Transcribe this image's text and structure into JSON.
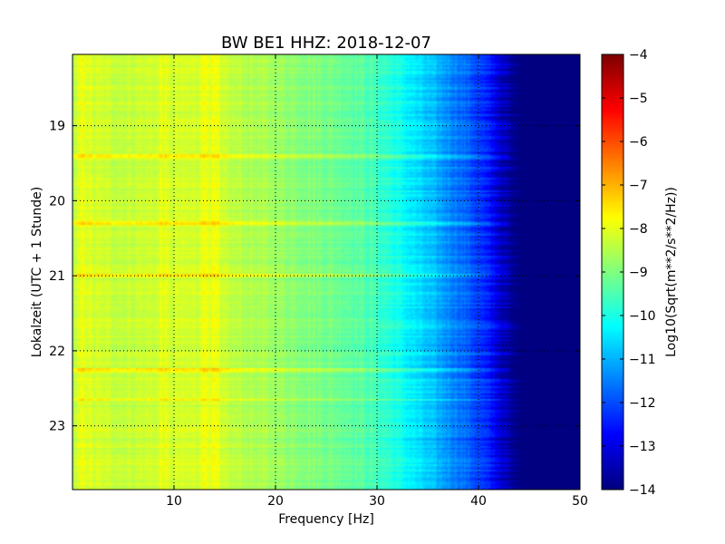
{
  "chart_data": {
    "type": "heatmap",
    "title": "BW BE1 HHZ: 2018-12-07",
    "xlabel": "Frequency [Hz]",
    "ylabel": "Lokalzeit (UTC + 1 Stunde)",
    "xlim": [
      0,
      50
    ],
    "ylim": [
      18.05,
      23.85
    ],
    "y_inverted": true,
    "grid": true,
    "x_ticks": [
      10,
      20,
      30,
      40,
      50
    ],
    "y_ticks": [
      19,
      20,
      21,
      22,
      23
    ],
    "x_tick_labels": [
      "10",
      "20",
      "30",
      "40",
      "50"
    ],
    "y_tick_labels": [
      "19",
      "20",
      "21",
      "22",
      "23"
    ],
    "colorbar": {
      "label": "Log10(Sqrt(m**2/s**2/Hz))",
      "colormap": "jet",
      "min": -14,
      "max": -4,
      "ticks": [
        -14,
        -13,
        -12,
        -11,
        -10,
        -9,
        -8,
        -7,
        -6,
        -5,
        -4
      ],
      "tick_labels": [
        "−14",
        "−13",
        "−12",
        "−11",
        "−10",
        "−9",
        "−8",
        "−7",
        "−6",
        "−5",
        "−4"
      ]
    },
    "spectrum_profile": {
      "frequency_hz": [
        0,
        1,
        2,
        5,
        9,
        13,
        20,
        28,
        31,
        33,
        35,
        37,
        39,
        41,
        42,
        43,
        44,
        46,
        50
      ],
      "log10_amplitude": [
        -8.6,
        -7.9,
        -8.2,
        -8.3,
        -8.2,
        -8.2,
        -8.7,
        -9.3,
        -9.8,
        -10.3,
        -10.8,
        -11.3,
        -11.8,
        -12.5,
        -13.1,
        -13.7,
        -14,
        -14,
        -14
      ]
    },
    "notable_times": [
      19.4,
      20.3,
      21.0,
      22.25,
      22.65
    ]
  }
}
